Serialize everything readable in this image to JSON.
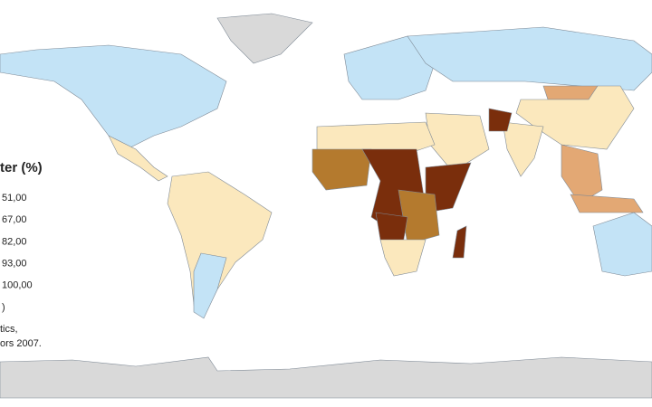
{
  "legend": {
    "title": "ter (%)",
    "items": [
      {
        "label": "51,00",
        "color": "#7a2e0c"
      },
      {
        "label": "67,00",
        "color": "#b47a2e"
      },
      {
        "label": "82,00",
        "color": "#e3a874"
      },
      {
        "label": "93,00",
        "color": "#fbe8bd"
      },
      {
        "label": "100,00",
        "color": "#c3e3f6"
      },
      {
        "label": ")",
        "color": "#d9d9d9"
      }
    ]
  },
  "source": [
    "tics,",
    "ors 2007."
  ]
}
